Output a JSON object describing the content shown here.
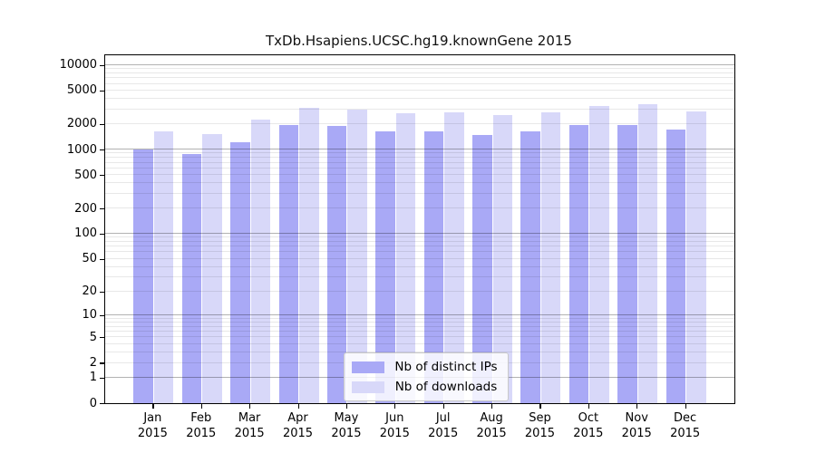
{
  "title": "TxDb.Hsapiens.UCSC.hg19.knownGene 2015",
  "legend": {
    "items": [
      {
        "label": "Nb of distinct IPs",
        "color": "#a9a9f6"
      },
      {
        "label": "Nb of downloads",
        "color": "#d8d8f9"
      }
    ]
  },
  "chart_data": {
    "type": "bar",
    "title": "TxDb.Hsapiens.UCSC.hg19.knownGene 2015",
    "categories": [
      "Jan",
      "Feb",
      "Mar",
      "Apr",
      "May",
      "Jun",
      "Jul",
      "Aug",
      "Sep",
      "Oct",
      "Nov",
      "Dec"
    ],
    "category_year": "2015",
    "series": [
      {
        "name": "Nb of distinct IPs",
        "color": "#a9a9f6",
        "values": [
          1000,
          890,
          1220,
          1940,
          1890,
          1640,
          1640,
          1500,
          1660,
          1930,
          1970,
          1710
        ]
      },
      {
        "name": "Nb of downloads",
        "color": "#d8d8f9",
        "values": [
          1630,
          1520,
          2250,
          3100,
          2950,
          2690,
          2760,
          2580,
          2750,
          3300,
          3420,
          2800
        ]
      }
    ],
    "y_ticks": [
      0,
      1,
      2,
      5,
      10,
      20,
      50,
      100,
      200,
      500,
      1000,
      2000,
      5000,
      10000
    ],
    "yscale": "log1p",
    "ylim": [
      0,
      13000
    ],
    "xlabel": "",
    "ylabel": "",
    "grid": true,
    "legend_position": "inside-bottom-center"
  }
}
